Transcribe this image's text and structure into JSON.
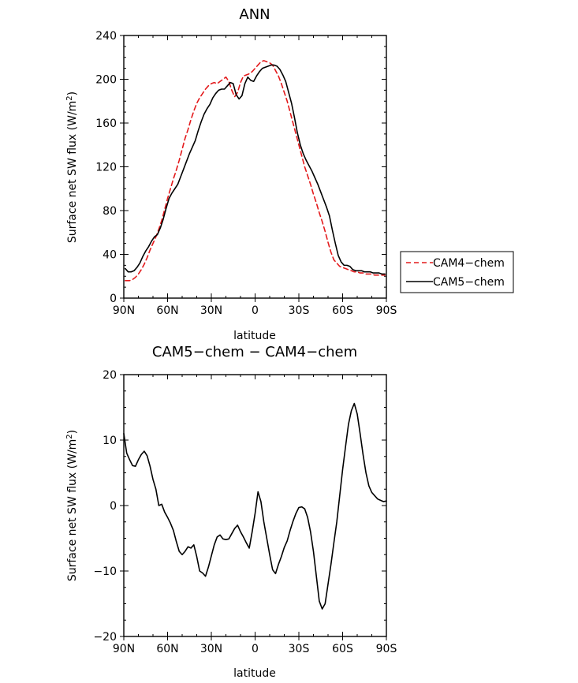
{
  "chart_data": [
    {
      "type": "line",
      "title": "ANN",
      "xlabel": "latitude",
      "ylabel": "Surface net SW flux (W/m²)",
      "ylabel_parts": {
        "main": "Surface net SW flux (W/m",
        "sup": "2",
        "end": ")"
      },
      "xlim": [
        90,
        -90
      ],
      "ylim": [
        0,
        240
      ],
      "x_ticks": [
        90,
        60,
        30,
        0,
        -30,
        -60,
        -90
      ],
      "x_tick_labels": [
        "90N",
        "60N",
        "30N",
        "0",
        "30S",
        "60S",
        "90S"
      ],
      "y_ticks": [
        0,
        40,
        80,
        120,
        160,
        200,
        240
      ],
      "y_tick_labels": [
        "0",
        "40",
        "80",
        "120",
        "160",
        "200",
        "240"
      ],
      "legend_position": "right",
      "series": [
        {
          "name": "CAM4−chem",
          "color": "#e31a1c",
          "dash": "dashed",
          "x": [
            89,
            86,
            84,
            82,
            80,
            78,
            76,
            74,
            72,
            70,
            68,
            66,
            64,
            62,
            60,
            58,
            56,
            54,
            52,
            50,
            48,
            46,
            44,
            42,
            40,
            38,
            36,
            34,
            32,
            30,
            28,
            26,
            24,
            22,
            20,
            18,
            16,
            14,
            12,
            10,
            8,
            6,
            4,
            2,
            0,
            -2,
            -4,
            -6,
            -8,
            -10,
            -12,
            -14,
            -16,
            -18,
            -20,
            -22,
            -24,
            -26,
            -28,
            -30,
            -32,
            -34,
            -36,
            -38,
            -40,
            -42,
            -44,
            -46,
            -48,
            -50,
            -52,
            -54,
            -56,
            -58,
            -60,
            -62,
            -64,
            -66,
            -68,
            -70,
            -72,
            -74,
            -76,
            -78,
            -80,
            -82,
            -84,
            -86,
            -88,
            -89
          ],
          "y": [
            16,
            16,
            17,
            19,
            22,
            26,
            31,
            37,
            44,
            50,
            56,
            63,
            71,
            81,
            91,
            100,
            109,
            117,
            126,
            136,
            146,
            154,
            163,
            171,
            178,
            183,
            187,
            191,
            194,
            196,
            197,
            196,
            198,
            200,
            202,
            198,
            190,
            184,
            188,
            197,
            203,
            204,
            205,
            207,
            210,
            213,
            216,
            217,
            216,
            215,
            213,
            208,
            203,
            196,
            188,
            180,
            170,
            160,
            150,
            140,
            130,
            120,
            112,
            104,
            95,
            87,
            78,
            70,
            61,
            51,
            42,
            35,
            32,
            29,
            28,
            27,
            26,
            25,
            24,
            24,
            23,
            23,
            22,
            22,
            22,
            21,
            21,
            21,
            21,
            21
          ]
        },
        {
          "name": "CAM5−chem",
          "color": "#000000",
          "dash": "solid",
          "x": [
            89,
            87,
            85,
            83,
            81,
            79,
            77,
            75,
            73,
            71,
            69,
            67,
            65,
            63,
            61,
            59,
            57,
            55,
            53,
            51,
            49,
            47,
            45,
            43,
            41,
            39,
            37,
            35,
            33,
            31,
            29,
            27,
            25,
            23,
            21,
            19,
            17,
            15,
            13,
            11,
            9,
            7,
            5,
            3,
            1,
            -1,
            -3,
            -5,
            -7,
            -9,
            -11,
            -13,
            -15,
            -17,
            -19,
            -21,
            -23,
            -25,
            -27,
            -29,
            -31,
            -33,
            -35,
            -37,
            -39,
            -41,
            -43,
            -45,
            -47,
            -49,
            -51,
            -53,
            -55,
            -57,
            -59,
            -61,
            -63,
            -65,
            -67,
            -69,
            -71,
            -73,
            -75,
            -77,
            -79,
            -81,
            -83,
            -85,
            -87,
            -89
          ],
          "y": [
            27,
            24,
            24,
            25,
            28,
            32,
            38,
            43,
            47,
            52,
            56,
            58,
            64,
            72,
            82,
            91,
            96,
            100,
            104,
            111,
            118,
            125,
            132,
            138,
            144,
            153,
            161,
            168,
            173,
            177,
            183,
            187,
            190,
            191,
            191,
            194,
            197,
            196,
            186,
            182,
            185,
            196,
            202,
            199,
            198,
            203,
            207,
            210,
            211,
            212,
            213,
            213,
            212,
            209,
            204,
            198,
            188,
            178,
            165,
            151,
            140,
            132,
            126,
            121,
            116,
            110,
            104,
            97,
            90,
            83,
            75,
            62,
            50,
            39,
            33,
            30,
            30,
            29,
            26,
            25,
            25,
            25,
            24,
            24,
            24,
            23,
            23,
            23,
            22,
            22
          ]
        }
      ]
    },
    {
      "type": "line",
      "title": "CAM5−chem − CAM4−chem",
      "xlabel": "latitude",
      "ylabel": "Surface net SW flux (W/m²)",
      "ylabel_parts": {
        "main": "Surface net SW flux (W/m",
        "sup": "2",
        "end": ")"
      },
      "xlim": [
        90,
        -90
      ],
      "ylim": [
        -20,
        20
      ],
      "x_ticks": [
        90,
        60,
        30,
        0,
        -30,
        -60,
        -90
      ],
      "x_tick_labels": [
        "90N",
        "60N",
        "30N",
        "0",
        "30S",
        "60S",
        "90S"
      ],
      "y_ticks": [
        -20,
        -10,
        0,
        10,
        20
      ],
      "y_tick_labels": [
        "−20",
        "−10",
        "0",
        "10",
        "20"
      ],
      "series": [
        {
          "color": "#000000",
          "dash": "solid",
          "x": [
            90,
            88,
            86,
            84,
            82,
            80,
            78,
            76,
            74,
            72,
            70,
            68,
            66,
            64,
            62,
            60,
            58,
            56,
            54,
            52,
            50,
            48,
            46,
            44,
            42,
            40,
            38,
            36,
            34,
            32,
            30,
            28,
            26,
            24,
            22,
            20,
            18,
            16,
            14,
            12,
            10,
            8,
            6,
            4,
            2,
            0,
            -2,
            -4,
            -6,
            -8,
            -10,
            -12,
            -14,
            -16,
            -18,
            -20,
            -22,
            -24,
            -26,
            -28,
            -30,
            -32,
            -34,
            -36,
            -38,
            -40,
            -42,
            -44,
            -46,
            -48,
            -50,
            -52,
            -54,
            -56,
            -58,
            -60,
            -62,
            -64,
            -66,
            -68,
            -70,
            -72,
            -74,
            -76,
            -78,
            -80,
            -82,
            -84,
            -86,
            -88,
            -90
          ],
          "y": [
            11,
            8,
            7,
            6.1,
            6,
            7,
            7.8,
            8.3,
            7.6,
            6,
            4,
            2.5,
            0,
            0.2,
            -1,
            -1.8,
            -2.7,
            -3.8,
            -5.5,
            -7,
            -7.5,
            -7,
            -6.3,
            -6.5,
            -6,
            -7.8,
            -10,
            -10.3,
            -10.8,
            -9.4,
            -7.7,
            -6,
            -4.8,
            -4.5,
            -5.1,
            -5.2,
            -5.1,
            -4.3,
            -3.5,
            -3,
            -4,
            -4.8,
            -5.7,
            -6.5,
            -4,
            -1.2,
            2.1,
            0.6,
            -2.5,
            -5,
            -7.5,
            -9.8,
            -10.4,
            -9,
            -7.8,
            -6.4,
            -5.4,
            -3.8,
            -2.4,
            -1.2,
            -0.3,
            -0.2,
            -0.5,
            -1.8,
            -4,
            -7,
            -10.8,
            -14.6,
            -15.8,
            -15,
            -12,
            -9,
            -5.7,
            -2.5,
            1.5,
            5.5,
            9,
            12.4,
            14.5,
            15.6,
            14,
            11,
            7.8,
            5,
            3,
            2,
            1.5,
            1,
            0.8,
            0.6,
            0.7
          ]
        }
      ]
    }
  ]
}
